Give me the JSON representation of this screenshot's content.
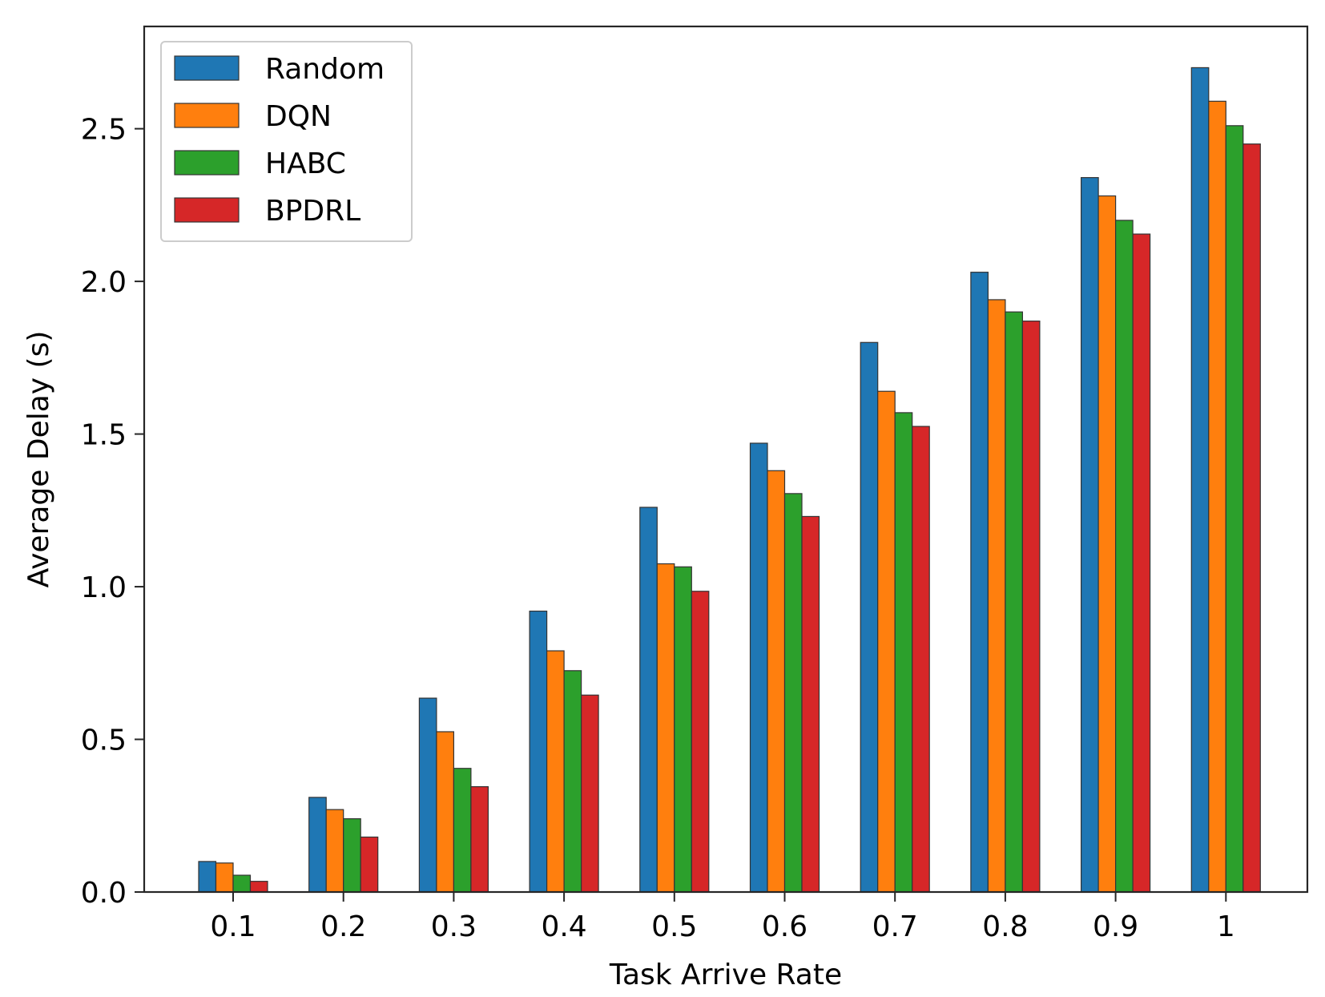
{
  "chart_data": {
    "type": "bar",
    "title": "",
    "xlabel": "Task Arrive Rate",
    "ylabel": "Average Delay (s)",
    "categories": [
      "0.1",
      "0.2",
      "0.3",
      "0.4",
      "0.5",
      "0.6",
      "0.7",
      "0.8",
      "0.9",
      "1"
    ],
    "series": [
      {
        "name": "Random",
        "color": "#1f77b4",
        "values": [
          0.1,
          0.31,
          0.635,
          0.92,
          1.26,
          1.47,
          1.8,
          2.03,
          2.34,
          2.7
        ]
      },
      {
        "name": "DQN",
        "color": "#ff7f0e",
        "values": [
          0.095,
          0.27,
          0.525,
          0.79,
          1.075,
          1.38,
          1.64,
          1.94,
          2.28,
          2.59
        ]
      },
      {
        "name": "HABC",
        "color": "#2ca02c",
        "values": [
          0.055,
          0.24,
          0.405,
          0.725,
          1.065,
          1.305,
          1.57,
          1.9,
          2.2,
          2.51
        ]
      },
      {
        "name": "BPDRL",
        "color": "#d62728",
        "values": [
          0.035,
          0.18,
          0.345,
          0.645,
          0.985,
          1.23,
          1.525,
          1.87,
          2.155,
          2.45
        ]
      }
    ],
    "yticks": [
      "0.0",
      "0.5",
      "1.0",
      "1.5",
      "2.0",
      "2.5"
    ],
    "ylim": [
      0,
      2.835
    ],
    "grid": false,
    "legend_position": "top-left"
  }
}
